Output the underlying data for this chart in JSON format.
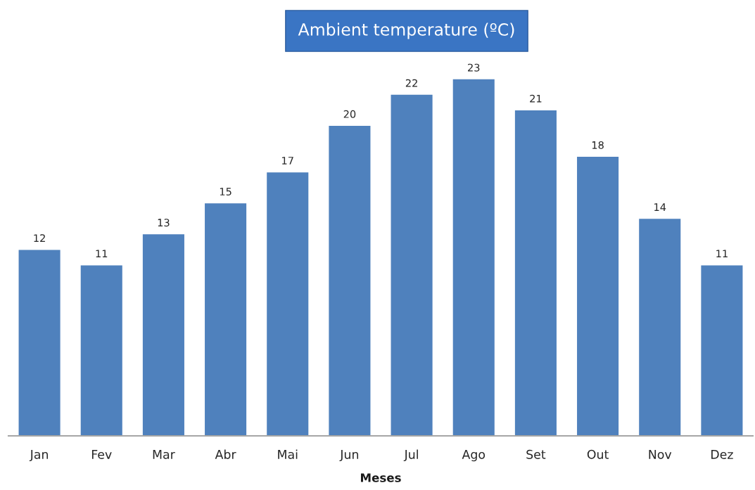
{
  "chart_data": {
    "type": "bar",
    "title": "Ambient temperature (ºC)",
    "xlabel": "Meses",
    "categories": [
      "Jan",
      "Fev",
      "Mar",
      "Abr",
      "Mai",
      "Jun",
      "Jul",
      "Ago",
      "Set",
      "Out",
      "Nov",
      "Dez"
    ],
    "values": [
      12,
      11,
      13,
      15,
      17,
      20,
      22,
      23,
      21,
      18,
      14,
      11
    ],
    "color": "#4f81bd",
    "data_labels": true,
    "grid": false,
    "legend": false,
    "tick_labels": "x"
  }
}
